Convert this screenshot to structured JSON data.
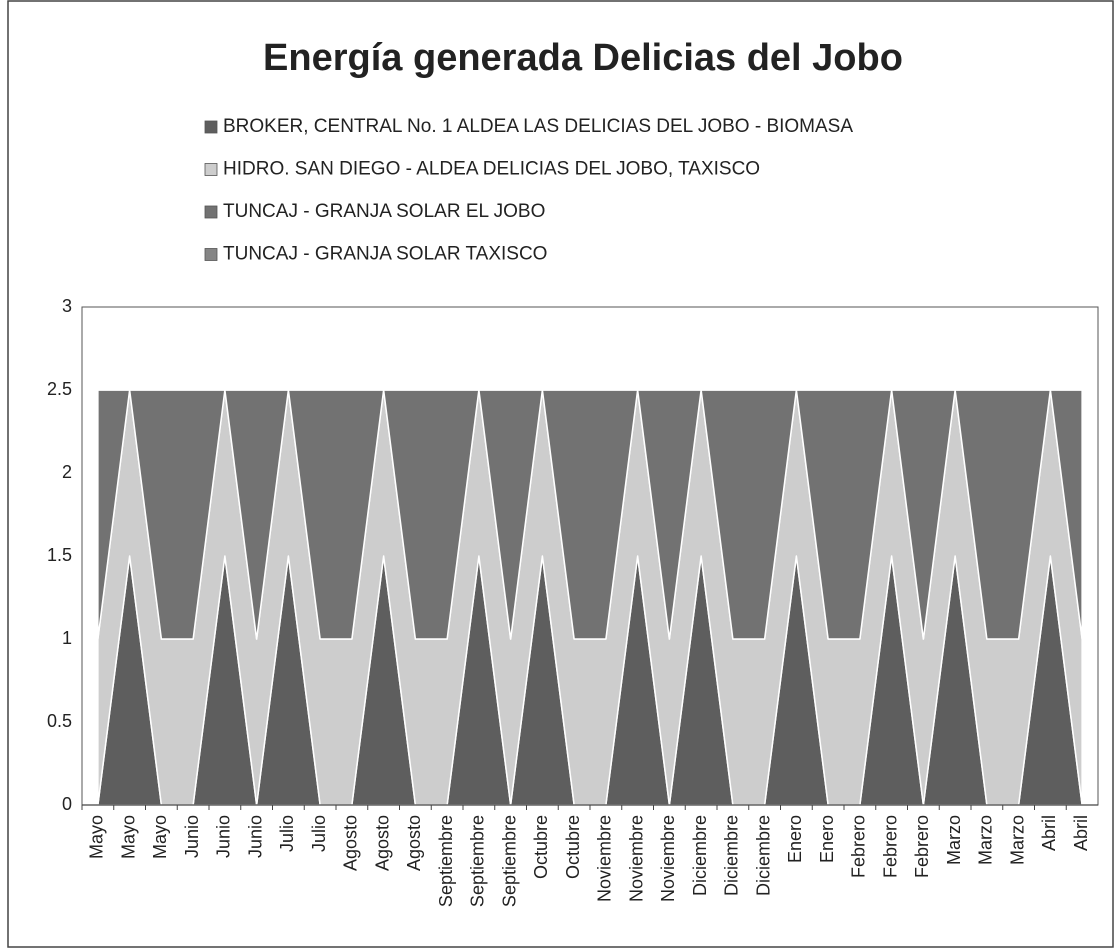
{
  "chart_data": {
    "type": "stacked_area",
    "title": "Energía generada Delicias del Jobo",
    "categories": [
      "Mayo",
      "Mayo",
      "Mayo",
      "Junio",
      "Junio",
      "Junio",
      "Julio",
      "Julio",
      "Agosto",
      "Agosto",
      "Agosto",
      "Septiembre",
      "Septiembre",
      "Septiembre",
      "Octubre",
      "Octubre",
      "Noviembre",
      "Noviembre",
      "Noviembre",
      "Diciembre",
      "Diciembre",
      "Diciembre",
      "Enero",
      "Enero",
      "Febrero",
      "Febrero",
      "Febrero",
      "Marzo",
      "Marzo",
      "Marzo",
      "Abril",
      "Abril"
    ],
    "series": [
      {
        "name": "BROKER, CENTRAL No. 1 ALDEA LAS DELICIAS DEL JOBO - BIOMASA",
        "color": "#5e5e5e",
        "values": [
          0,
          1.5,
          0,
          0,
          1.5,
          0,
          1.5,
          0,
          0,
          1.5,
          0,
          0,
          1.5,
          0,
          1.5,
          0,
          0,
          1.5,
          0,
          1.5,
          0,
          0,
          1.5,
          0,
          0,
          1.5,
          0,
          1.5,
          0,
          0,
          1.5,
          0
        ]
      },
      {
        "name": "HIDRO. SAN DIEGO -  ALDEA DELICIAS DEL JOBO, TAXISCO",
        "color": "#cdcdcd",
        "values": [
          1,
          1,
          1,
          1,
          1,
          1,
          1,
          1,
          1,
          1,
          1,
          1,
          1,
          1,
          1,
          1,
          1,
          1,
          1,
          1,
          1,
          1,
          1,
          1,
          1,
          1,
          1,
          1,
          1,
          1,
          1,
          1
        ]
      },
      {
        "name": "TUNCAJ - GRANJA SOLAR EL JOBO",
        "color": "#727272",
        "values": [
          1.5,
          0,
          1.5,
          1.5,
          0,
          1.5,
          0,
          1.5,
          1.5,
          0,
          1.5,
          1.5,
          0,
          1.5,
          0,
          1.5,
          1.5,
          0,
          1.5,
          0,
          1.5,
          1.5,
          0,
          1.5,
          1.5,
          0,
          1.5,
          0,
          1.5,
          1.5,
          0,
          1.5
        ]
      },
      {
        "name": "TUNCAJ - GRANJA SOLAR TAXISCO",
        "color": "#858585",
        "values": [
          0,
          0,
          0,
          0,
          0,
          0,
          0,
          0,
          0,
          0,
          0,
          0,
          0,
          0,
          0,
          0,
          0,
          0,
          0,
          0,
          0,
          0,
          0,
          0,
          0,
          0,
          0,
          0,
          0,
          0,
          0,
          0
        ]
      }
    ],
    "ylim": [
      0,
      3
    ],
    "yticks": [
      0,
      0.5,
      1,
      1.5,
      2,
      2.5,
      3
    ],
    "grid": false
  }
}
